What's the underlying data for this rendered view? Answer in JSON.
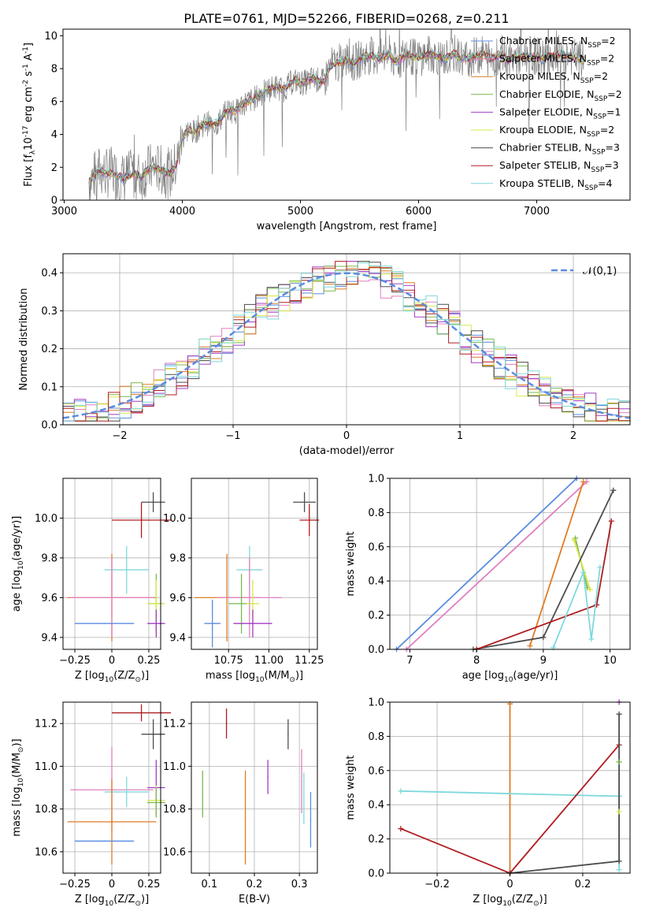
{
  "figure_title": "PLATE=0761, MJD=52266, FIBERID=0268, z=0.211",
  "series": [
    {
      "name": "Chabrier MILES, N$_{SSP}$=2",
      "color": "#5b8ce0"
    },
    {
      "name": "Salpeter MILES, N$_{SSP}$=2",
      "color": "#e07fc0"
    },
    {
      "name": "Kroupa MILES, N$_{SSP}$=2",
      "color": "#e07c24"
    },
    {
      "name": "Chabrier ELODIE, N$_{SSP}$=2",
      "color": "#79b84f"
    },
    {
      "name": "Salpeter ELODIE, N$_{SSP}$=1",
      "color": "#a33cc4"
    },
    {
      "name": "Kroupa ELODIE, N$_{SSP}$=2",
      "color": "#d8e84a"
    },
    {
      "name": "Chabrier STELIB, N$_{SSP}$=3",
      "color": "#4d4d4d"
    },
    {
      "name": "Salpeter STELIB, N$_{SSP}$=3",
      "color": "#b01c20"
    },
    {
      "name": "Kroupa STELIB, N$_{SSP}$=4",
      "color": "#7fd8dc"
    }
  ],
  "chart_data": [
    {
      "id": "spectrum",
      "type": "line",
      "xlabel": "wavelength [Angstrom, rest frame]",
      "ylabel": "Flux [f$_\\lambda$10$^{-17}$ erg cm$^{-2}$ s$^{-1}$ A$^{-1}$]",
      "xlim": [
        2990,
        7790
      ],
      "ylim": [
        0,
        10.4
      ],
      "xticks": [
        3000,
        4000,
        5000,
        6000,
        7000
      ],
      "yticks": [
        0,
        2,
        4,
        6,
        8,
        10
      ],
      "legend_position": "top-right",
      "grid": false,
      "data_color": "#808080",
      "model_wavelength": [
        3210,
        3260,
        3300,
        3350,
        3400,
        3450,
        3500,
        3550,
        3600,
        3650,
        3700,
        3750,
        3800,
        3850,
        3900,
        3950,
        4000,
        4050,
        4100,
        4150,
        4200,
        4250,
        4300,
        4350,
        4400,
        4450,
        4500,
        4550,
        4600,
        4650,
        4700,
        4750,
        4800,
        4850,
        4900,
        4950,
        5000,
        5050,
        5100,
        5150,
        5200,
        5250,
        5300,
        5350,
        5400,
        5450,
        5500,
        5550,
        5600,
        5650,
        5700,
        5750,
        5800,
        5850,
        5900,
        5950,
        6000,
        6050,
        6100,
        6150,
        6200,
        6250,
        6300,
        6350,
        6400,
        6450,
        6500,
        6550,
        6600,
        6650,
        6700,
        6750,
        6800,
        6850,
        6900,
        6950,
        7000,
        7050,
        7100,
        7150,
        7200,
        7250,
        7300,
        7350,
        7400
      ],
      "model_flux": [
        1.2,
        1.5,
        1.8,
        1.6,
        1.7,
        1.5,
        1.3,
        1.5,
        1.6,
        1.4,
        1.8,
        2.0,
        1.9,
        1.7,
        1.6,
        2.2,
        3.8,
        4.3,
        4.1,
        4.5,
        4.7,
        4.6,
        4.7,
        5.2,
        5.5,
        5.4,
        5.8,
        6.0,
        6.1,
        6.4,
        6.6,
        6.8,
        6.9,
        6.7,
        7.0,
        7.3,
        7.1,
        7.2,
        7.4,
        7.3,
        7.2,
        8.1,
        8.3,
        8.4,
        8.5,
        8.3,
        8.6,
        8.7,
        8.8,
        8.6,
        8.7,
        8.9,
        8.4,
        8.6,
        8.9,
        8.7,
        8.7,
        8.8,
        8.9,
        8.8,
        8.6,
        8.7,
        8.9,
        8.7,
        8.6,
        8.7,
        8.8,
        8.9,
        8.6,
        8.7,
        8.9,
        8.5,
        8.6,
        8.7,
        8.8,
        8.7,
        8.8,
        8.6,
        8.8,
        8.7,
        8.9,
        8.8,
        8.7,
        8.6,
        8.5
      ]
    },
    {
      "id": "residuals",
      "type": "bar",
      "xlabel": "(data-model)/error",
      "ylabel": "Normed distribution",
      "xlim": [
        -2.5,
        2.5
      ],
      "ylim": [
        0,
        0.45
      ],
      "xticks": [
        -2,
        -1,
        0,
        1,
        2
      ],
      "yticks": [
        0.0,
        0.1,
        0.2,
        0.3,
        0.4
      ],
      "grid": true,
      "legend_position": "top-right",
      "reference_label": "$\\mathcal{N}(0,1)$",
      "reference_color": "#5b8ce0",
      "bin_width": 0.1
    },
    {
      "id": "age_vs_Z",
      "type": "scatter",
      "xlabel": "Z [log$_{10}$(Z/Z$_\\odot$)]",
      "ylabel": "age  [log$_{10}$(age/yr)]",
      "xlim": [
        -0.33,
        0.33
      ],
      "ylim": [
        9.34,
        10.2
      ],
      "xticks": [
        -0.25,
        0.0,
        0.25
      ],
      "yticks": [
        9.4,
        9.6,
        9.8,
        10.0
      ],
      "grid": true,
      "points": [
        {
          "x": 0.28,
          "y": 10.08,
          "xerr": 0.08,
          "yerr": 0.05,
          "series": 6
        },
        {
          "x": 0.2,
          "y": 9.99,
          "xerr": 0.2,
          "yerr": 0.09,
          "series": 7
        },
        {
          "x": 0.1,
          "y": 9.74,
          "xerr": 0.15,
          "yerr": 0.12,
          "series": 8
        },
        {
          "x": 0.0,
          "y": 9.6,
          "xerr": 0.3,
          "yerr": 0.22,
          "series": 2
        },
        {
          "x": 0.0,
          "y": 9.6,
          "xerr": 0.28,
          "yerr": 0.2,
          "series": 1
        },
        {
          "x": 0.3,
          "y": 9.57,
          "xerr": 0.05,
          "yerr": 0.15,
          "series": 3
        },
        {
          "x": 0.3,
          "y": 9.57,
          "xerr": 0.06,
          "yerr": 0.12,
          "series": 5
        },
        {
          "x": 0.3,
          "y": 9.47,
          "xerr": 0.06,
          "yerr": 0.07,
          "series": 4
        },
        {
          "x": -0.05,
          "y": 9.47,
          "xerr": 0.2,
          "yerr": 0.0,
          "series": 0
        }
      ]
    },
    {
      "id": "age_vs_mass",
      "type": "scatter",
      "xlabel": "mass [log$_{10}$(M/M$_\\odot$)]",
      "ylabel": "",
      "xlim": [
        10.52,
        11.3
      ],
      "ylim": [
        9.34,
        10.2
      ],
      "xticks": [
        10.75,
        11.0,
        11.25
      ],
      "xtick_labels": [
        "10.75",
        "11.00",
        "11.25"
      ],
      "yticks": [
        9.4,
        9.6,
        9.8,
        10.0
      ],
      "grid": true,
      "points": [
        {
          "x": 11.22,
          "y": 10.08,
          "xerr": 0.07,
          "yerr": 0.05,
          "series": 6
        },
        {
          "x": 11.25,
          "y": 9.99,
          "xerr": 0.06,
          "yerr": 0.08,
          "series": 7
        },
        {
          "x": 10.88,
          "y": 9.74,
          "xerr": 0.08,
          "yerr": 0.12,
          "series": 8
        },
        {
          "x": 10.74,
          "y": 9.6,
          "xerr": 0.2,
          "yerr": 0.22,
          "series": 2
        },
        {
          "x": 10.88,
          "y": 9.6,
          "xerr": 0.2,
          "yerr": 0.2,
          "series": 1
        },
        {
          "x": 10.83,
          "y": 9.57,
          "xerr": 0.08,
          "yerr": 0.15,
          "series": 3
        },
        {
          "x": 10.9,
          "y": 9.57,
          "xerr": 0.04,
          "yerr": 0.12,
          "series": 5
        },
        {
          "x": 10.65,
          "y": 9.47,
          "xerr": 0.05,
          "yerr": 0.12,
          "series": 0
        },
        {
          "x": 10.9,
          "y": 9.47,
          "xerr": 0.12,
          "yerr": 0.07,
          "series": 4
        }
      ]
    },
    {
      "id": "weight_vs_age",
      "type": "line",
      "xlabel": "age  [log$_{10}$(age/yr)]",
      "ylabel": "mass weight",
      "xlim": [
        6.7,
        10.3
      ],
      "ylim": [
        0,
        1.0
      ],
      "xticks": [
        7,
        8,
        9,
        10
      ],
      "yticks": [
        0.0,
        0.2,
        0.4,
        0.6,
        0.8,
        1.0
      ],
      "grid": true,
      "lines": [
        {
          "series": 0,
          "x": [
            6.8,
            9.5
          ],
          "y": [
            0.0,
            1.0
          ]
        },
        {
          "series": 1,
          "x": [
            6.95,
            9.65
          ],
          "y": [
            0.0,
            0.98
          ]
        },
        {
          "series": 2,
          "x": [
            8.8,
            9.6
          ],
          "y": [
            0.02,
            0.98
          ]
        },
        {
          "series": 3,
          "x": [
            9.48,
            9.66
          ],
          "y": [
            0.65,
            0.36
          ]
        },
        {
          "series": 5,
          "x": [
            9.46,
            9.7
          ],
          "y": [
            0.64,
            0.35
          ]
        },
        {
          "series": 6,
          "x": [
            7.95,
            9.0,
            10.05
          ],
          "y": [
            0.0,
            0.07,
            0.93
          ]
        },
        {
          "series": 7,
          "x": [
            8.0,
            9.8,
            10.02
          ],
          "y": [
            0.0,
            0.26,
            0.75
          ]
        },
        {
          "series": 8,
          "x": [
            9.15,
            9.6,
            9.72,
            9.85
          ],
          "y": [
            0.01,
            0.45,
            0.06,
            0.48
          ]
        }
      ]
    },
    {
      "id": "mass_vs_Z",
      "type": "scatter",
      "xlabel": "Z [log$_{10}$(Z/Z$_\\odot$)]",
      "ylabel": "mass [log$_{10}$(M/M$_\\odot$)]",
      "xlim": [
        -0.33,
        0.33
      ],
      "ylim": [
        10.5,
        11.3
      ],
      "xticks": [
        -0.25,
        0.0,
        0.25
      ],
      "yticks": [
        10.6,
        10.8,
        11.0,
        11.2
      ],
      "grid": true,
      "points": [
        {
          "x": 0.2,
          "y": 11.25,
          "xerr": 0.2,
          "yerr": 0.04,
          "series": 7
        },
        {
          "x": 0.28,
          "y": 11.15,
          "xerr": 0.08,
          "yerr": 0.07,
          "series": 6
        },
        {
          "x": 0.3,
          "y": 10.9,
          "xerr": 0.06,
          "yerr": 0.13,
          "series": 4
        },
        {
          "x": 0.0,
          "y": 10.89,
          "xerr": 0.28,
          "yerr": 0.2,
          "series": 1
        },
        {
          "x": 0.1,
          "y": 10.88,
          "xerr": 0.15,
          "yerr": 0.07,
          "series": 8
        },
        {
          "x": 0.3,
          "y": 10.84,
          "xerr": 0.06,
          "yerr": 0.07,
          "series": 5
        },
        {
          "x": 0.3,
          "y": 10.83,
          "xerr": 0.06,
          "yerr": 0.07,
          "series": 3
        },
        {
          "x": 0.0,
          "y": 10.74,
          "xerr": 0.3,
          "yerr": 0.2,
          "series": 2
        },
        {
          "x": -0.05,
          "y": 10.65,
          "xerr": 0.2,
          "yerr": 0.0,
          "series": 0
        }
      ]
    },
    {
      "id": "mass_vs_ebv",
      "type": "scatter",
      "xlabel": "E(B-V)",
      "ylabel": "",
      "xlim": [
        0.06,
        0.34
      ],
      "ylim": [
        10.5,
        11.3
      ],
      "xticks": [
        0.1,
        0.2,
        0.3
      ],
      "yticks": [
        10.6,
        10.8,
        11.0,
        11.2
      ],
      "grid": true,
      "points": [
        {
          "x": 0.085,
          "y": 10.87,
          "yerr": 0.11,
          "series": 3
        },
        {
          "x": 0.138,
          "y": 11.2,
          "yerr": 0.07,
          "series": 7
        },
        {
          "x": 0.18,
          "y": 10.76,
          "yerr": 0.22,
          "series": 2
        },
        {
          "x": 0.23,
          "y": 10.95,
          "yerr": 0.08,
          "series": 4
        },
        {
          "x": 0.275,
          "y": 11.15,
          "yerr": 0.07,
          "series": 6
        },
        {
          "x": 0.305,
          "y": 10.93,
          "yerr": 0.15,
          "series": 1
        },
        {
          "x": 0.31,
          "y": 10.85,
          "yerr": 0.12,
          "series": 8
        },
        {
          "x": 0.325,
          "y": 10.75,
          "yerr": 0.13,
          "series": 0
        }
      ]
    },
    {
      "id": "weight_vs_Z",
      "type": "line",
      "xlabel": "Z [log$_{10}$(Z/Z$_\\odot$)]",
      "ylabel": "mass weight",
      "xlim": [
        -0.33,
        0.33
      ],
      "ylim": [
        0,
        1.0
      ],
      "xticks": [
        -0.2,
        0.0,
        0.2
      ],
      "yticks": [
        0.0,
        0.2,
        0.4,
        0.6,
        0.8,
        1.0
      ],
      "grid": true,
      "lines": [
        {
          "series": 2,
          "x": [
            0.0,
            0.0
          ],
          "y": [
            0.0,
            0.99
          ]
        },
        {
          "series": 8,
          "x": [
            -0.3,
            0.3
          ],
          "y": [
            0.48,
            0.45
          ]
        },
        {
          "series": 8,
          "x": [
            0.3,
            0.3
          ],
          "y": [
            0.45,
            0.02
          ]
        },
        {
          "series": 7,
          "x": [
            -0.3,
            0.0,
            0.3
          ],
          "y": [
            0.26,
            0.0,
            0.75
          ]
        },
        {
          "series": 6,
          "x": [
            0.0,
            0.3,
            0.3
          ],
          "y": [
            0.0,
            0.07,
            0.93
          ]
        },
        {
          "series": 3,
          "x": [
            0.3
          ],
          "y": [
            0.65
          ]
        },
        {
          "series": 5,
          "x": [
            0.3
          ],
          "y": [
            0.36
          ]
        },
        {
          "series": 4,
          "x": [
            0.3
          ],
          "y": [
            1.0
          ]
        }
      ]
    }
  ]
}
